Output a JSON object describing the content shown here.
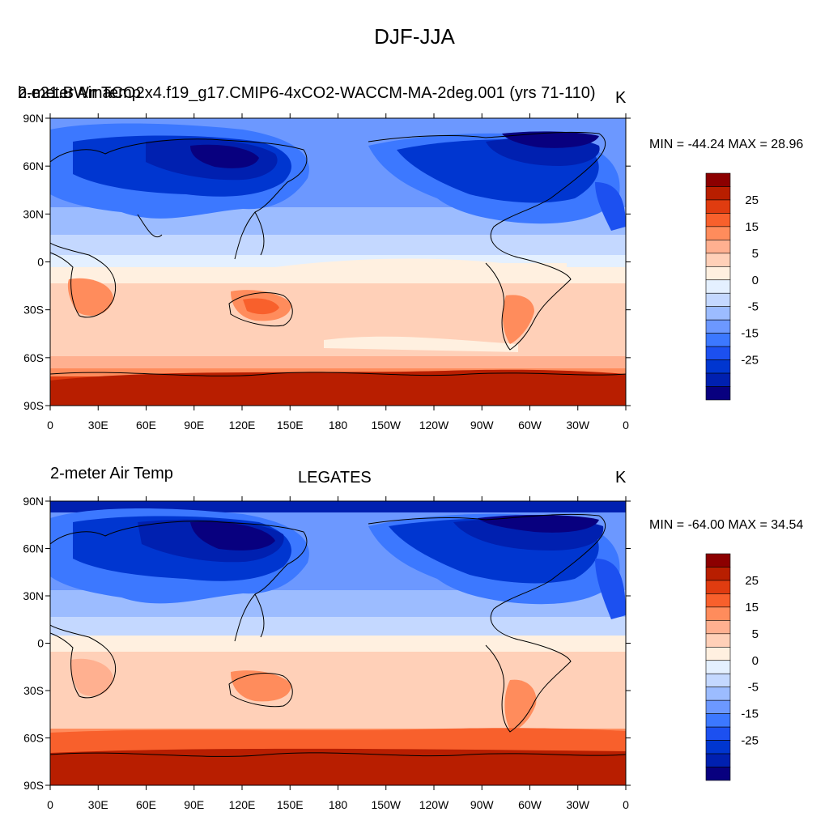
{
  "title": "DJF-JJA",
  "colors": [
    "#08007f",
    "#0020b0",
    "#0036d0",
    "#1c50f0",
    "#3c78ff",
    "#6c98ff",
    "#9cbcff",
    "#c4d8ff",
    "#e4f0ff",
    "#fff0e0",
    "#ffd0b8",
    "#ffb090",
    "#ff8c5c",
    "#f8602c",
    "#e03c10",
    "#b81e00",
    "#8c0000"
  ],
  "colorbar_labels": [
    "25",
    "15",
    "5",
    "0",
    "-5",
    "-15",
    "-25"
  ],
  "lat_labels": [
    "90N",
    "60N",
    "30N",
    "0",
    "30S",
    "60S",
    "90S"
  ],
  "lon_labels": [
    "0",
    "30E",
    "60E",
    "90E",
    "120E",
    "150E",
    "180",
    "150W",
    "120W",
    "90W",
    "60W",
    "30W",
    "0"
  ],
  "panels": [
    {
      "left_text": "2-meter Air Temp",
      "center_text": "b.e21.BWmaCO2x4.f19_g17.CMIP6-4xCO2-WACCM-MA-2deg.001 (yrs 71-110)",
      "right_text": "K",
      "min_max": "MIN = -44.24 MAX =  28.96"
    },
    {
      "left_text": "2-meter Air Temp",
      "center_text": "LEGATES",
      "right_text": "K",
      "min_max": "MIN = -64.00 MAX =  34.54"
    }
  ]
}
